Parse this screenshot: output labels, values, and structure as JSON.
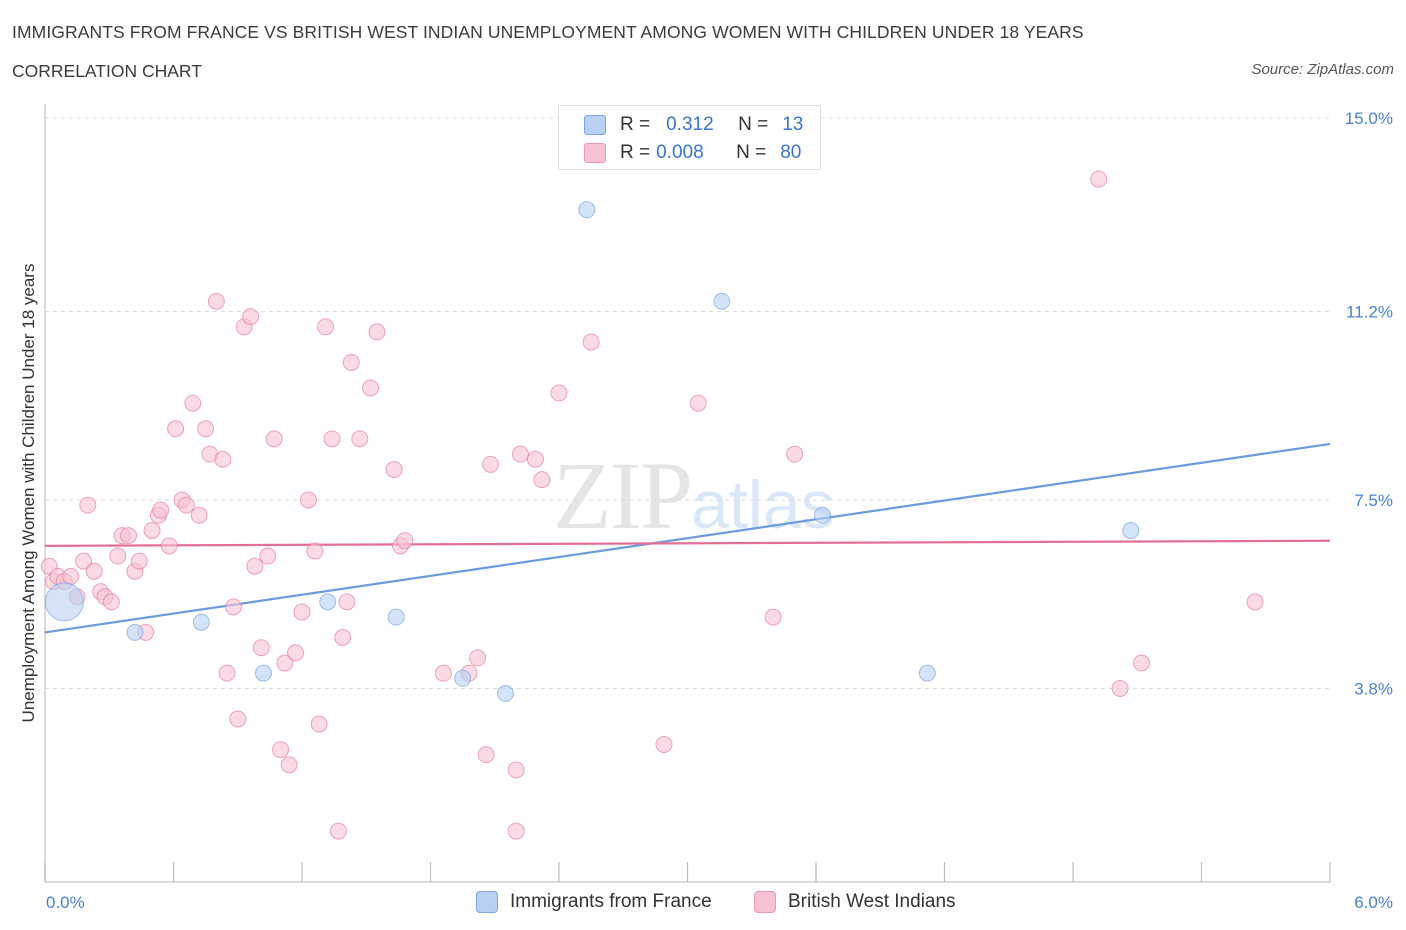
{
  "header": {
    "title": "IMMIGRANTS FROM FRANCE VS BRITISH WEST INDIAN UNEMPLOYMENT AMONG WOMEN WITH CHILDREN UNDER 18 YEARS",
    "subtitle": "CORRELATION CHART",
    "source": "Source: ZipAtlas.com"
  },
  "watermark": {
    "zip": "ZIP",
    "atlas": "atlas"
  },
  "legend": {
    "rows": [
      {
        "r_label": "R =",
        "r_value": "0.312",
        "n_label": "N =",
        "n_value": "13",
        "color": "#b8d1f3"
      },
      {
        "r_label": "R =",
        "r_value": "0.008",
        "n_label": "N =",
        "n_value": "80",
        "color": "#f6c1d1"
      }
    ]
  },
  "bottom_legend": {
    "france": "Immigrants from France",
    "bwi": "British West Indians"
  },
  "chart_data": {
    "type": "scatter",
    "title": "IMMIGRANTS FROM FRANCE VS BRITISH WEST INDIAN UNEMPLOYMENT AMONG WOMEN WITH CHILDREN UNDER 18 YEARS",
    "ylabel": "Unemployment Among Women with Children Under 18 years",
    "xlabel": "",
    "xlim": [
      0,
      6.0
    ],
    "ylim": [
      0,
      15.0
    ],
    "x_tick_labels": [
      "0.0%",
      "6.0%"
    ],
    "y_tick_labels": [
      "3.8%",
      "7.5%",
      "11.2%",
      "15.0%"
    ],
    "y_tick_values": [
      3.8,
      7.5,
      11.2,
      15.0
    ],
    "grid": true,
    "series": [
      {
        "name": "Immigrants from France",
        "color": "#6b9be0",
        "fill": "#b8d1f3",
        "trend": [
          [
            0,
            4.9
          ],
          [
            6.0,
            8.6
          ]
        ],
        "points": [
          {
            "x": 0.09,
            "y": 5.5,
            "big": true
          },
          {
            "x": 0.42,
            "y": 4.9
          },
          {
            "x": 0.73,
            "y": 5.1
          },
          {
            "x": 1.02,
            "y": 4.1
          },
          {
            "x": 1.32,
            "y": 5.5
          },
          {
            "x": 1.64,
            "y": 5.2
          },
          {
            "x": 1.95,
            "y": 4.0
          },
          {
            "x": 2.15,
            "y": 3.7
          },
          {
            "x": 2.53,
            "y": 13.2
          },
          {
            "x": 3.16,
            "y": 11.4
          },
          {
            "x": 3.63,
            "y": 7.2
          },
          {
            "x": 4.12,
            "y": 4.1
          },
          {
            "x": 5.07,
            "y": 6.9
          }
        ]
      },
      {
        "name": "British West Indians",
        "color": "#e46f95",
        "fill": "#f6c1d1",
        "trend": [
          [
            0,
            6.6
          ],
          [
            6.0,
            6.7
          ]
        ],
        "points": [
          {
            "x": 0.02,
            "y": 6.2
          },
          {
            "x": 0.04,
            "y": 5.9
          },
          {
            "x": 0.06,
            "y": 6.0
          },
          {
            "x": 0.09,
            "y": 5.9
          },
          {
            "x": 0.12,
            "y": 6.0
          },
          {
            "x": 0.15,
            "y": 5.6
          },
          {
            "x": 0.18,
            "y": 6.3
          },
          {
            "x": 0.2,
            "y": 7.4
          },
          {
            "x": 0.23,
            "y": 6.1
          },
          {
            "x": 0.26,
            "y": 5.7
          },
          {
            "x": 0.28,
            "y": 5.6
          },
          {
            "x": 0.31,
            "y": 5.5
          },
          {
            "x": 0.34,
            "y": 6.4
          },
          {
            "x": 0.36,
            "y": 6.8
          },
          {
            "x": 0.39,
            "y": 6.8
          },
          {
            "x": 0.42,
            "y": 6.1
          },
          {
            "x": 0.44,
            "y": 6.3
          },
          {
            "x": 0.47,
            "y": 4.9
          },
          {
            "x": 0.5,
            "y": 6.9
          },
          {
            "x": 0.53,
            "y": 7.2
          },
          {
            "x": 0.54,
            "y": 7.3
          },
          {
            "x": 0.58,
            "y": 6.6
          },
          {
            "x": 0.61,
            "y": 8.9
          },
          {
            "x": 0.64,
            "y": 7.5
          },
          {
            "x": 0.66,
            "y": 7.4
          },
          {
            "x": 0.69,
            "y": 9.4
          },
          {
            "x": 0.72,
            "y": 7.2
          },
          {
            "x": 0.75,
            "y": 8.9
          },
          {
            "x": 0.77,
            "y": 8.4
          },
          {
            "x": 0.8,
            "y": 11.4
          },
          {
            "x": 0.83,
            "y": 8.3
          },
          {
            "x": 0.85,
            "y": 4.1
          },
          {
            "x": 0.88,
            "y": 5.4
          },
          {
            "x": 0.9,
            "y": 3.2
          },
          {
            "x": 0.93,
            "y": 10.9
          },
          {
            "x": 0.96,
            "y": 11.1
          },
          {
            "x": 0.98,
            "y": 6.2
          },
          {
            "x": 1.01,
            "y": 4.6
          },
          {
            "x": 1.04,
            "y": 6.4
          },
          {
            "x": 1.07,
            "y": 8.7
          },
          {
            "x": 1.1,
            "y": 2.6
          },
          {
            "x": 1.12,
            "y": 4.3
          },
          {
            "x": 1.14,
            "y": 2.3
          },
          {
            "x": 1.17,
            "y": 4.5
          },
          {
            "x": 1.2,
            "y": 5.3
          },
          {
            "x": 1.23,
            "y": 7.5
          },
          {
            "x": 1.26,
            "y": 6.5
          },
          {
            "x": 1.28,
            "y": 3.1
          },
          {
            "x": 1.31,
            "y": 10.9
          },
          {
            "x": 1.34,
            "y": 8.7
          },
          {
            "x": 1.37,
            "y": 1.0
          },
          {
            "x": 1.39,
            "y": 4.8
          },
          {
            "x": 1.41,
            "y": 5.5
          },
          {
            "x": 1.43,
            "y": 10.2
          },
          {
            "x": 1.47,
            "y": 8.7
          },
          {
            "x": 1.52,
            "y": 9.7
          },
          {
            "x": 1.55,
            "y": 10.8
          },
          {
            "x": 1.63,
            "y": 8.1
          },
          {
            "x": 1.66,
            "y": 6.6
          },
          {
            "x": 1.68,
            "y": 6.7
          },
          {
            "x": 1.86,
            "y": 4.1
          },
          {
            "x": 1.98,
            "y": 4.1
          },
          {
            "x": 2.02,
            "y": 4.4
          },
          {
            "x": 2.06,
            "y": 2.5
          },
          {
            "x": 2.08,
            "y": 8.2
          },
          {
            "x": 2.2,
            "y": 2.2
          },
          {
            "x": 2.2,
            "y": 1.0
          },
          {
            "x": 2.22,
            "y": 8.4
          },
          {
            "x": 2.29,
            "y": 8.3
          },
          {
            "x": 2.32,
            "y": 7.9
          },
          {
            "x": 2.4,
            "y": 9.6
          },
          {
            "x": 2.55,
            "y": 10.6
          },
          {
            "x": 2.89,
            "y": 2.7
          },
          {
            "x": 3.05,
            "y": 9.4
          },
          {
            "x": 3.4,
            "y": 5.2
          },
          {
            "x": 3.5,
            "y": 8.4
          },
          {
            "x": 4.92,
            "y": 13.8
          },
          {
            "x": 5.02,
            "y": 3.8
          },
          {
            "x": 5.12,
            "y": 4.3
          },
          {
            "x": 5.65,
            "y": 5.5
          }
        ]
      }
    ]
  }
}
